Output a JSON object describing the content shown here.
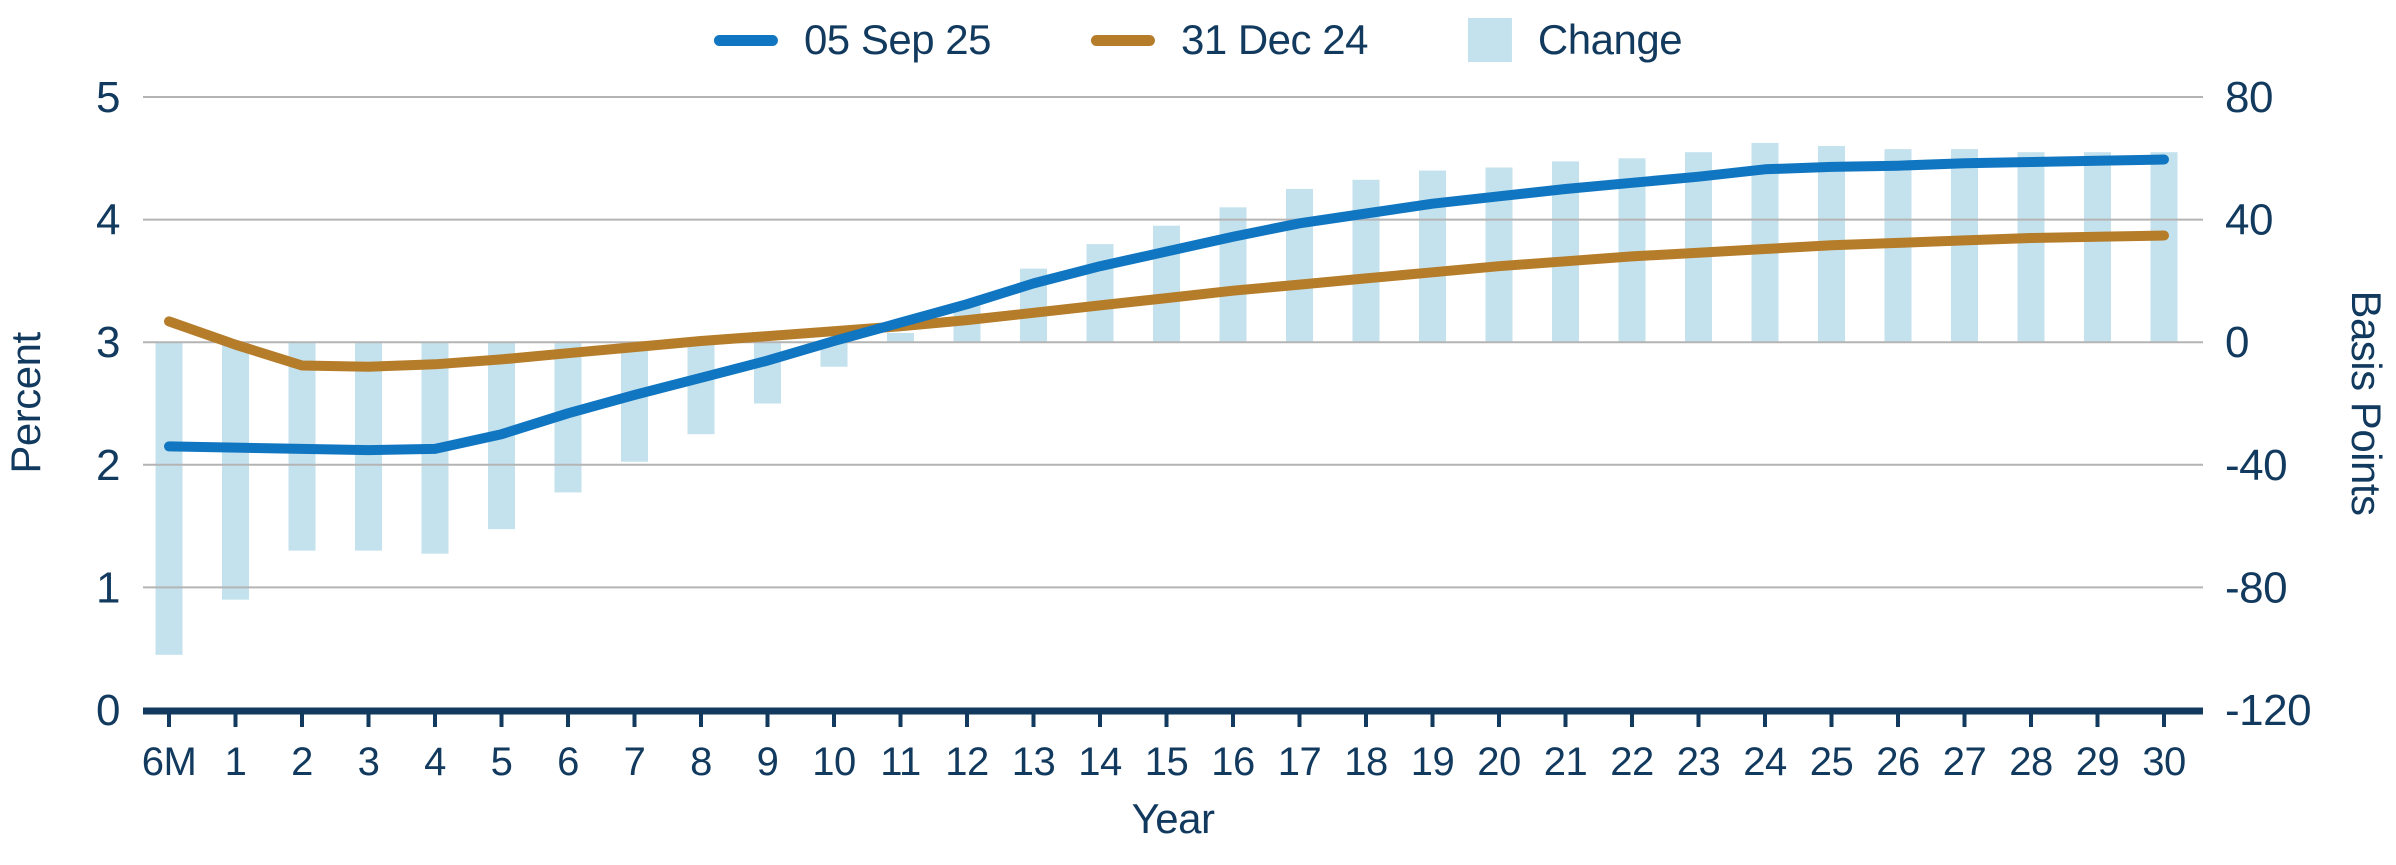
{
  "chart_data": {
    "type": "line+bar",
    "categories": [
      "6M",
      "1",
      "2",
      "3",
      "4",
      "5",
      "6",
      "7",
      "8",
      "9",
      "10",
      "11",
      "12",
      "13",
      "14",
      "15",
      "16",
      "17",
      "18",
      "19",
      "20",
      "21",
      "22",
      "23",
      "24",
      "25",
      "26",
      "27",
      "28",
      "29",
      "30"
    ],
    "series": [
      {
        "name": "05 Sep 25",
        "type": "line",
        "axis": "left",
        "color": "#1176c1",
        "values": [
          2.15,
          2.14,
          2.13,
          2.12,
          2.13,
          2.25,
          2.42,
          2.57,
          2.71,
          2.85,
          3.01,
          3.16,
          3.31,
          3.48,
          3.62,
          3.74,
          3.86,
          3.97,
          4.05,
          4.13,
          4.19,
          4.25,
          4.3,
          4.35,
          4.41,
          4.43,
          4.44,
          4.46,
          4.47,
          4.48,
          4.49
        ]
      },
      {
        "name": "31 Dec 24",
        "type": "line",
        "axis": "left",
        "color": "#b57c2a",
        "values": [
          3.17,
          2.98,
          2.81,
          2.8,
          2.82,
          2.86,
          2.91,
          2.96,
          3.01,
          3.05,
          3.09,
          3.13,
          3.18,
          3.24,
          3.3,
          3.36,
          3.42,
          3.47,
          3.52,
          3.57,
          3.62,
          3.66,
          3.7,
          3.73,
          3.76,
          3.79,
          3.81,
          3.83,
          3.85,
          3.86,
          3.87
        ]
      },
      {
        "name": "Change",
        "type": "bar",
        "axis": "right",
        "color": "#c4e2ee",
        "values": [
          -102,
          -84,
          -68,
          -68,
          -69,
          -61,
          -49,
          -39,
          -30,
          -20,
          -8,
          3,
          13,
          24,
          32,
          38,
          44,
          50,
          53,
          56,
          57,
          59,
          60,
          62,
          65,
          64,
          63,
          63,
          62,
          62,
          62
        ]
      }
    ],
    "left_axis": {
      "title": "Percent",
      "min": 0,
      "max": 5,
      "ticks": [
        5,
        4,
        3,
        2,
        1,
        0
      ]
    },
    "right_axis": {
      "title": "Basis Points",
      "min": -120,
      "max": 80,
      "ticks": [
        80,
        40,
        0,
        -40,
        -80,
        -120
      ],
      "bar_baseline": 0
    },
    "x_axis": {
      "title": "Year"
    },
    "grid": true,
    "legend_position": "top-center"
  },
  "colors": {
    "text_navy": "#123a5e",
    "axis_line": "#123a5e",
    "gridline": "#b4b4b4",
    "background": "#ffffff",
    "series_blue": "#1176c1",
    "series_brown": "#b57c2a",
    "series_bar": "#c4e2ee"
  }
}
